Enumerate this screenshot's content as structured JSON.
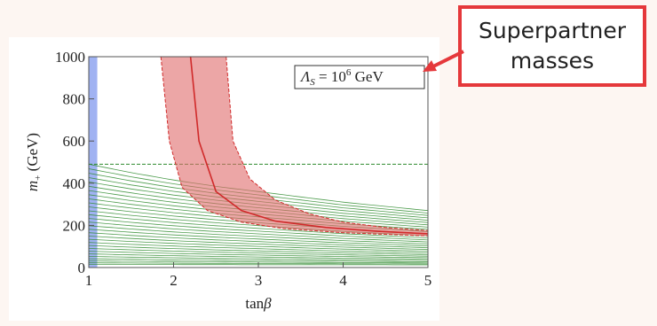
{
  "chart_data": {
    "type": "line",
    "xlabel_var": "tan",
    "xlabel_sym": "β",
    "ylabel_var": "m",
    "ylabel_sub": "+",
    "ylabel_unit": " (GeV)",
    "xlim": [
      1,
      5
    ],
    "ylim": [
      0,
      1000
    ],
    "x_ticks": [
      "1",
      "2",
      "3",
      "4",
      "5"
    ],
    "y_ticks": [
      "0",
      "200",
      "400",
      "600",
      "800",
      "1000"
    ],
    "x_tick_values": [
      1,
      2,
      3,
      4,
      5
    ],
    "y_tick_values": [
      0,
      200,
      400,
      600,
      800,
      1000
    ],
    "annotation": {
      "sym": "Λ",
      "sub": "S",
      "eq": " =  10",
      "exp": "6",
      "unit": " GeV"
    },
    "excluded_band": {
      "x": [
        1.0,
        1.1
      ],
      "y": [
        0,
        1000
      ],
      "color": "#8fa5f0"
    },
    "horizontal_limit": {
      "y": 490,
      "x": [
        1,
        5
      ],
      "color": "#2e8b2e"
    },
    "green_contours": {
      "color": "#2e8b2e",
      "count": 30,
      "x": [
        1,
        1.5,
        2,
        2.5,
        3,
        3.5,
        4,
        4.5,
        5
      ],
      "top_curve_y": [
        490,
        450,
        415,
        385,
        360,
        335,
        310,
        290,
        270
      ],
      "bottom_value": 10
    },
    "red_band": {
      "color": "#e06a6a",
      "upper": {
        "x": [
          2.62,
          2.7,
          2.9,
          3.2,
          3.6,
          4.0,
          4.5,
          5.0
        ],
        "y": [
          1000,
          600,
          420,
          320,
          255,
          215,
          190,
          175
        ]
      },
      "lower": {
        "x": [
          1.85,
          1.95,
          2.1,
          2.4,
          2.8,
          3.3,
          4.0,
          5.0
        ],
        "y": [
          1000,
          600,
          380,
          270,
          215,
          185,
          165,
          150
        ]
      },
      "central": {
        "x": [
          2.2,
          2.3,
          2.5,
          2.8,
          3.2,
          3.8,
          4.4,
          5.0
        ],
        "y": [
          1000,
          600,
          360,
          270,
          220,
          190,
          172,
          160
        ]
      }
    }
  },
  "callout": {
    "line1": "Superpartner",
    "line2": "masses",
    "border_color": "#e5383b"
  }
}
